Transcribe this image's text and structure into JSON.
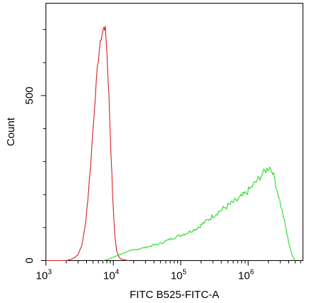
{
  "chart_data": {
    "type": "line",
    "title": "",
    "xlabel": "FITC B525-FITC-A",
    "ylabel": "Count",
    "x_scale": "log",
    "xlim": [
      1000,
      6500000
    ],
    "ylim": [
      0,
      780
    ],
    "grid": false,
    "x_ticks": [
      {
        "value": 1000,
        "base": "10",
        "exp": "3"
      },
      {
        "value": 10000,
        "base": "10",
        "exp": "4"
      },
      {
        "value": 100000,
        "base": "10",
        "exp": "5"
      },
      {
        "value": 1000000,
        "base": "10",
        "exp": "6"
      }
    ],
    "y_ticks": [
      {
        "value": 0,
        "label": "0"
      },
      {
        "value": 500,
        "label": "500"
      }
    ],
    "y_minor_ticks": [
      100,
      200,
      300,
      400,
      600,
      700
    ],
    "series": [
      {
        "color": "#d62020",
        "x": [
          1000,
          2000,
          2300,
          2600,
          3000,
          3400,
          3800,
          4200,
          4600,
          5000,
          5400,
          5800,
          6200,
          6600,
          7000,
          7300,
          7600,
          7900,
          8200,
          8600,
          9000,
          9500,
          10000,
          10600,
          11200,
          12000,
          13000,
          14500,
          17000
        ],
        "y": [
          0,
          0,
          3,
          8,
          18,
          45,
          100,
          190,
          290,
          400,
          500,
          580,
          640,
          675,
          695,
          710,
          700,
          660,
          590,
          500,
          390,
          260,
          150,
          70,
          30,
          12,
          5,
          2,
          0
        ]
      },
      {
        "color": "#22dd22",
        "x": [
          7000,
          8500,
          10000,
          12000,
          15000,
          20000,
          30000,
          50000,
          80000,
          120000,
          180000,
          250000,
          350000,
          500000,
          700000,
          900000,
          1100000,
          1300000,
          1500000,
          1700000,
          1900000,
          2100000,
          2300000,
          2500000,
          2800000,
          3200000,
          3600000,
          4000000,
          4500000,
          5000000
        ],
        "y": [
          0,
          4,
          10,
          17,
          25,
          32,
          40,
          52,
          70,
          83,
          100,
          123,
          146,
          166,
          184,
          202,
          220,
          238,
          253,
          267,
          277,
          283,
          272,
          240,
          200,
          150,
          100,
          55,
          15,
          0
        ]
      }
    ]
  }
}
